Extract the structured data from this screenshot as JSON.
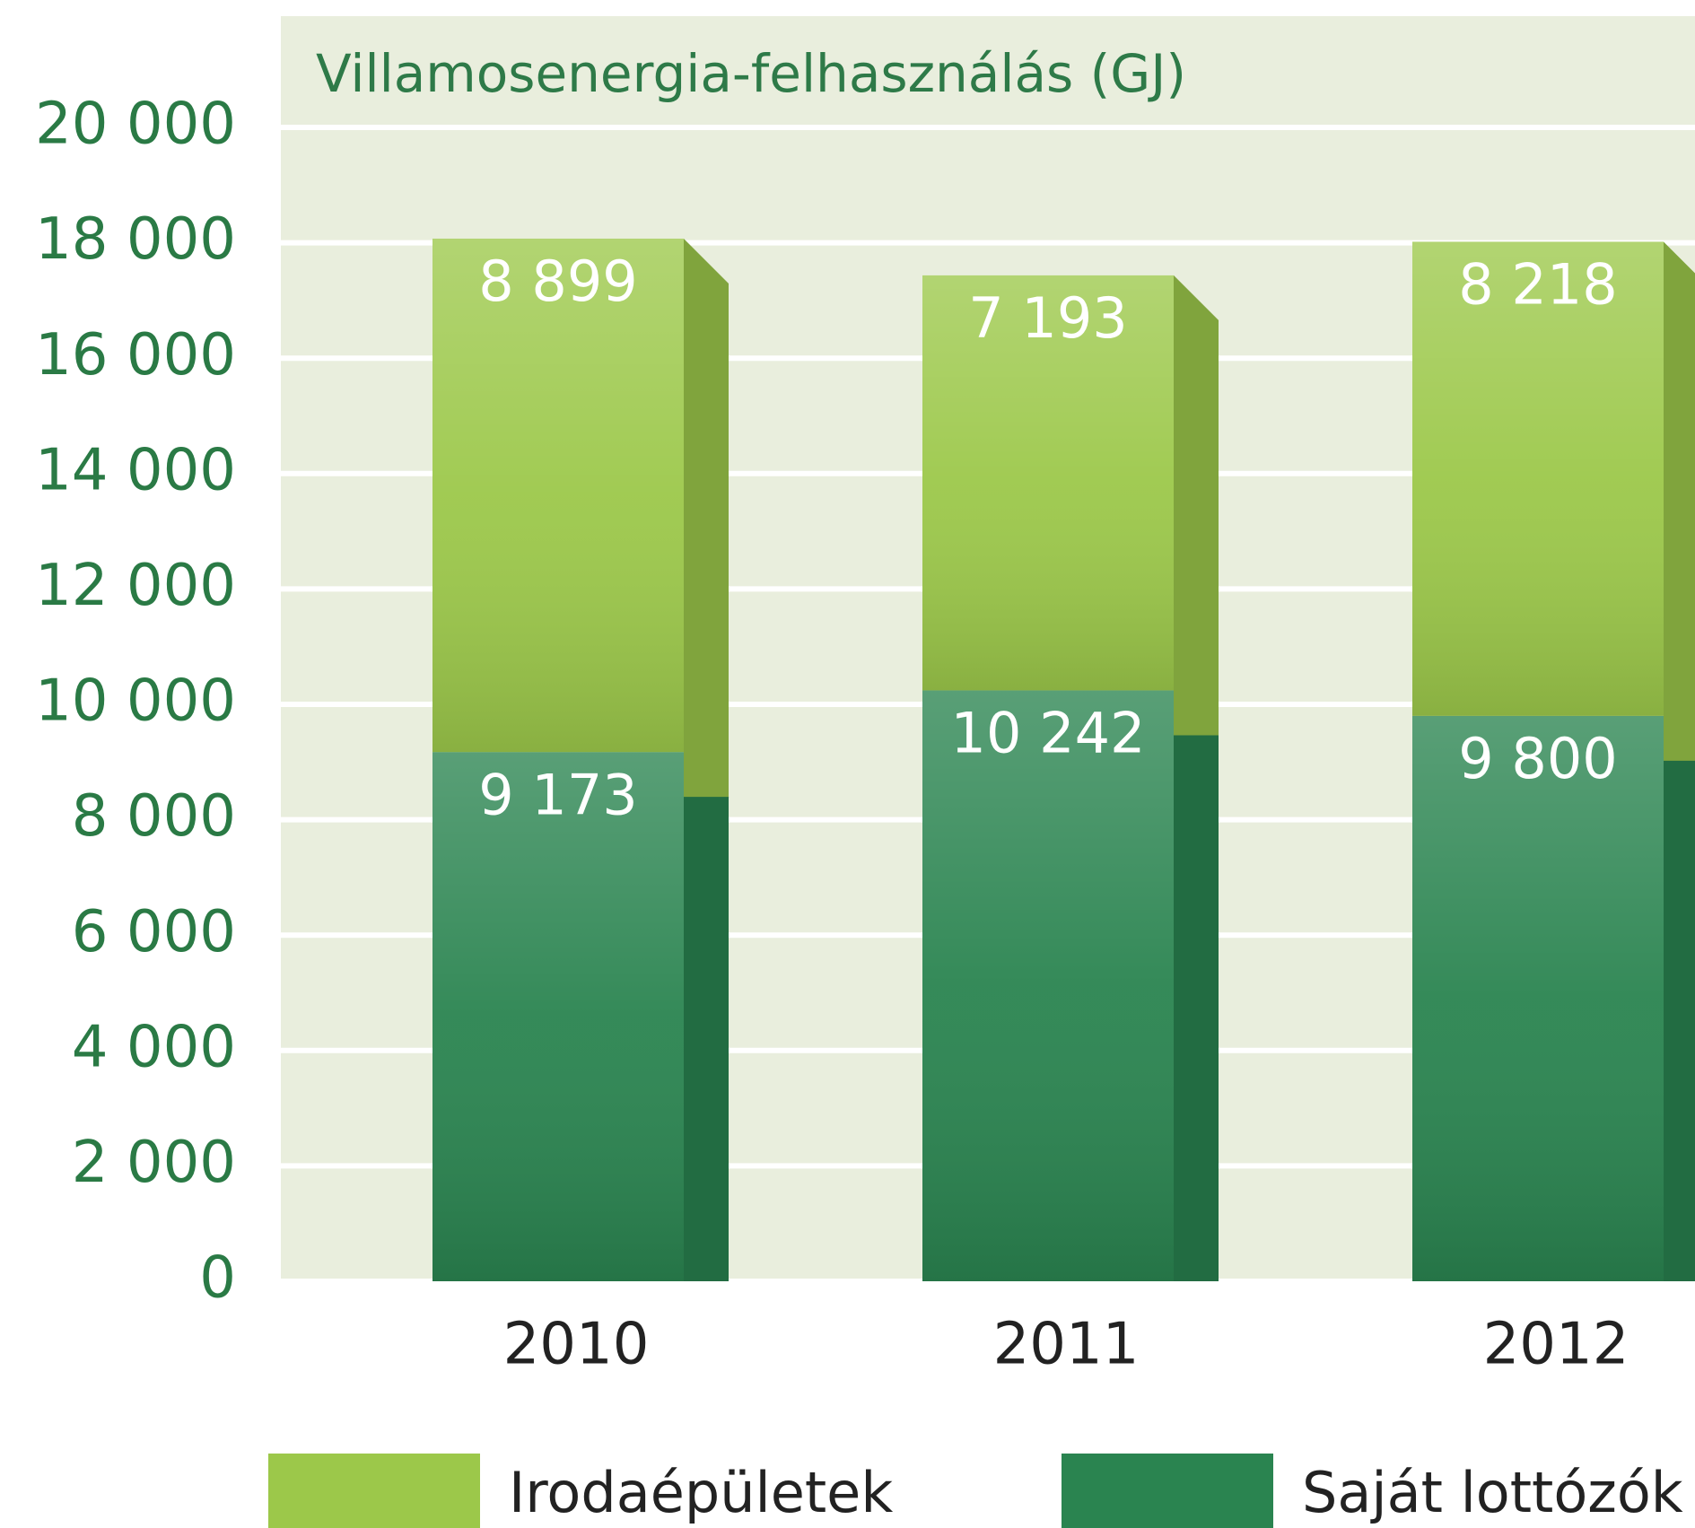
{
  "chart_data": {
    "type": "bar",
    "title": "Villamosenergia-felhasználás (GJ)",
    "categories": [
      "2010",
      "2011",
      "2012"
    ],
    "series": [
      {
        "name": "Irodaépületek",
        "color": "#9cc84a",
        "values": [
          8899,
          7193,
          8218
        ],
        "value_labels": [
          "8 899",
          "7 193",
          "8 218"
        ]
      },
      {
        "name": "Saját lottózók",
        "color": "#2a8450",
        "values": [
          9173,
          10242,
          9800
        ],
        "value_labels": [
          "9 173",
          "10 242",
          "9 800"
        ]
      }
    ],
    "ylim": [
      0,
      20000
    ],
    "yticks": [
      0,
      {
        "value": 2000,
        "label": "2 000"
      },
      {
        "value": 4000,
        "label": "4 000"
      },
      {
        "value": 6000,
        "label": "6 000"
      },
      {
        "value": 8000,
        "label": "8 000"
      },
      {
        "value": 10000,
        "label": "10 000"
      },
      {
        "value": 12000,
        "label": "12 000"
      },
      {
        "value": 14000,
        "label": "14 000"
      },
      {
        "value": 16000,
        "label": "16 000"
      },
      {
        "value": 18000,
        "label": "18 000"
      },
      {
        "value": 20000,
        "label": "20 000"
      }
    ],
    "grid": true
  }
}
